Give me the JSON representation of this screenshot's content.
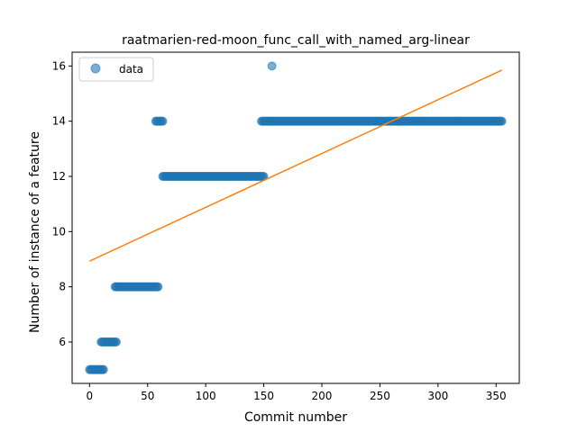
{
  "chart_data": {
    "type": "scatter",
    "title": "raatmarien-red-moon_func_call_with_named_arg-linear",
    "xlabel": "Commit number",
    "ylabel": "Number of instance of a feature",
    "xlim": [
      -15,
      370
    ],
    "ylim": [
      4.5,
      16.5
    ],
    "xticks": [
      0,
      50,
      100,
      150,
      200,
      250,
      300,
      350
    ],
    "yticks": [
      6,
      8,
      10,
      12,
      14,
      16
    ],
    "legend": {
      "label": "data",
      "placement": "top-left"
    },
    "colors": {
      "data": "#1f77b4",
      "fit": "#ff7f0e"
    },
    "series": [
      {
        "name": "data",
        "kind": "scatter",
        "segments": [
          {
            "x_start": 0,
            "x_end": 12,
            "y": 5
          },
          {
            "x_start": 10,
            "x_end": 23,
            "y": 6
          },
          {
            "x_start": 22,
            "x_end": 59,
            "y": 8
          },
          {
            "x_start": 57,
            "x_end": 63,
            "y": 14
          },
          {
            "x_start": 63,
            "x_end": 150,
            "y": 12
          },
          {
            "x_start": 148,
            "x_end": 355,
            "y": 14
          }
        ],
        "points": [
          {
            "x": 157,
            "y": 16
          }
        ]
      },
      {
        "kind": "line",
        "points": [
          {
            "x": 0,
            "y": 8.93
          },
          {
            "x": 355,
            "y": 15.85
          }
        ]
      }
    ]
  }
}
